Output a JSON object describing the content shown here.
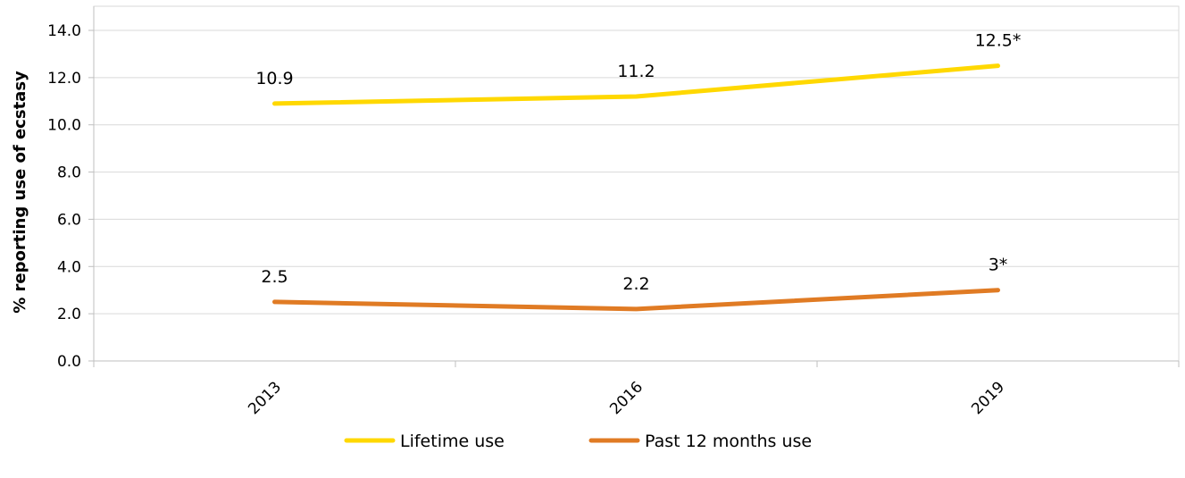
{
  "chart_data": {
    "type": "line",
    "categories": [
      "2013",
      "2016",
      "2019"
    ],
    "series": [
      {
        "name": "Lifetime use",
        "values": [
          10.9,
          11.2,
          12.5
        ],
        "labels": [
          "10.9",
          "11.2",
          "12.5*"
        ],
        "color": "#FFD800"
      },
      {
        "name": "Past 12 months use",
        "values": [
          2.5,
          2.2,
          3.0
        ],
        "labels": [
          "2.5",
          "2.2",
          "3*"
        ],
        "color": "#E07B24"
      }
    ],
    "ylabel": "% reporting use of ecstasy",
    "xlabel": "",
    "ylim": [
      0,
      14
    ],
    "yticks": [
      "0.0",
      "2.0",
      "4.0",
      "6.0",
      "8.0",
      "10.0",
      "12.0",
      "14.0"
    ],
    "grid": true,
    "legend": "bottom-center"
  }
}
